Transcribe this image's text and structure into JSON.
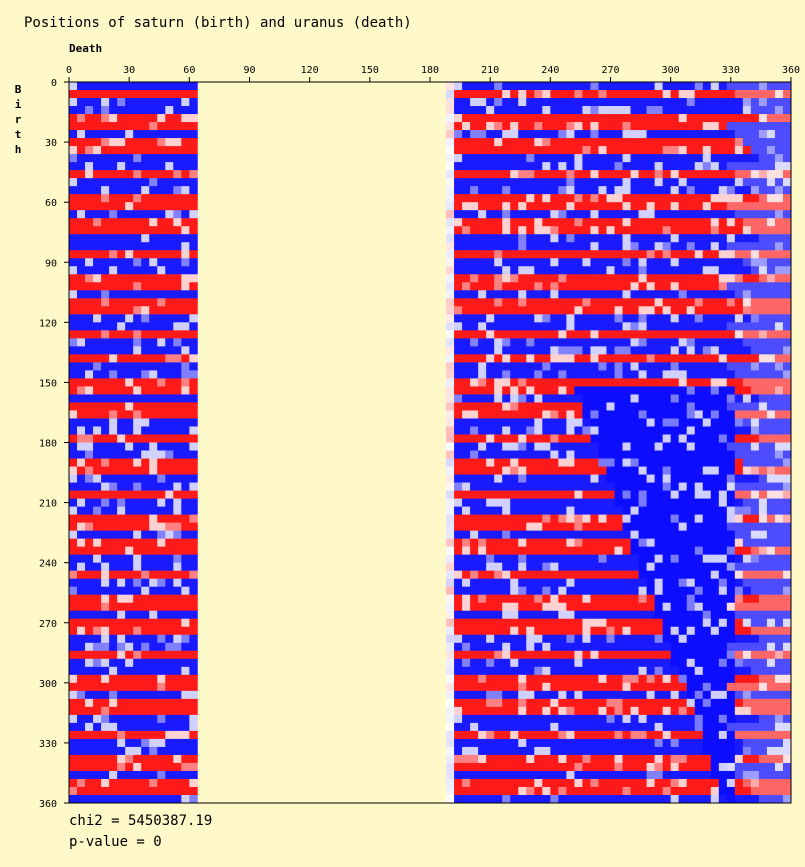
{
  "chart_data": {
    "type": "heatmap",
    "title": "Positions of saturn (birth) and uranus (death)",
    "xlabel": "Death",
    "ylabel": "Birth",
    "xlim": [
      0,
      360
    ],
    "ylim": [
      0,
      360
    ],
    "x_ticks": [
      0,
      30,
      60,
      90,
      120,
      150,
      180,
      210,
      240,
      270,
      300,
      330,
      360
    ],
    "y_ticks": [
      0,
      30,
      60,
      90,
      120,
      150,
      180,
      210,
      240,
      270,
      300,
      330,
      360
    ],
    "colors": {
      "high": "#FF0000",
      "low": "#0000FF",
      "neutral": "#FFFFFF",
      "background": "#FFF8C8"
    },
    "empty_x_range": [
      62,
      186
    ],
    "stats": {
      "chi2": "chi2 = 5450387.19",
      "p_value": "p-value = 0"
    }
  }
}
